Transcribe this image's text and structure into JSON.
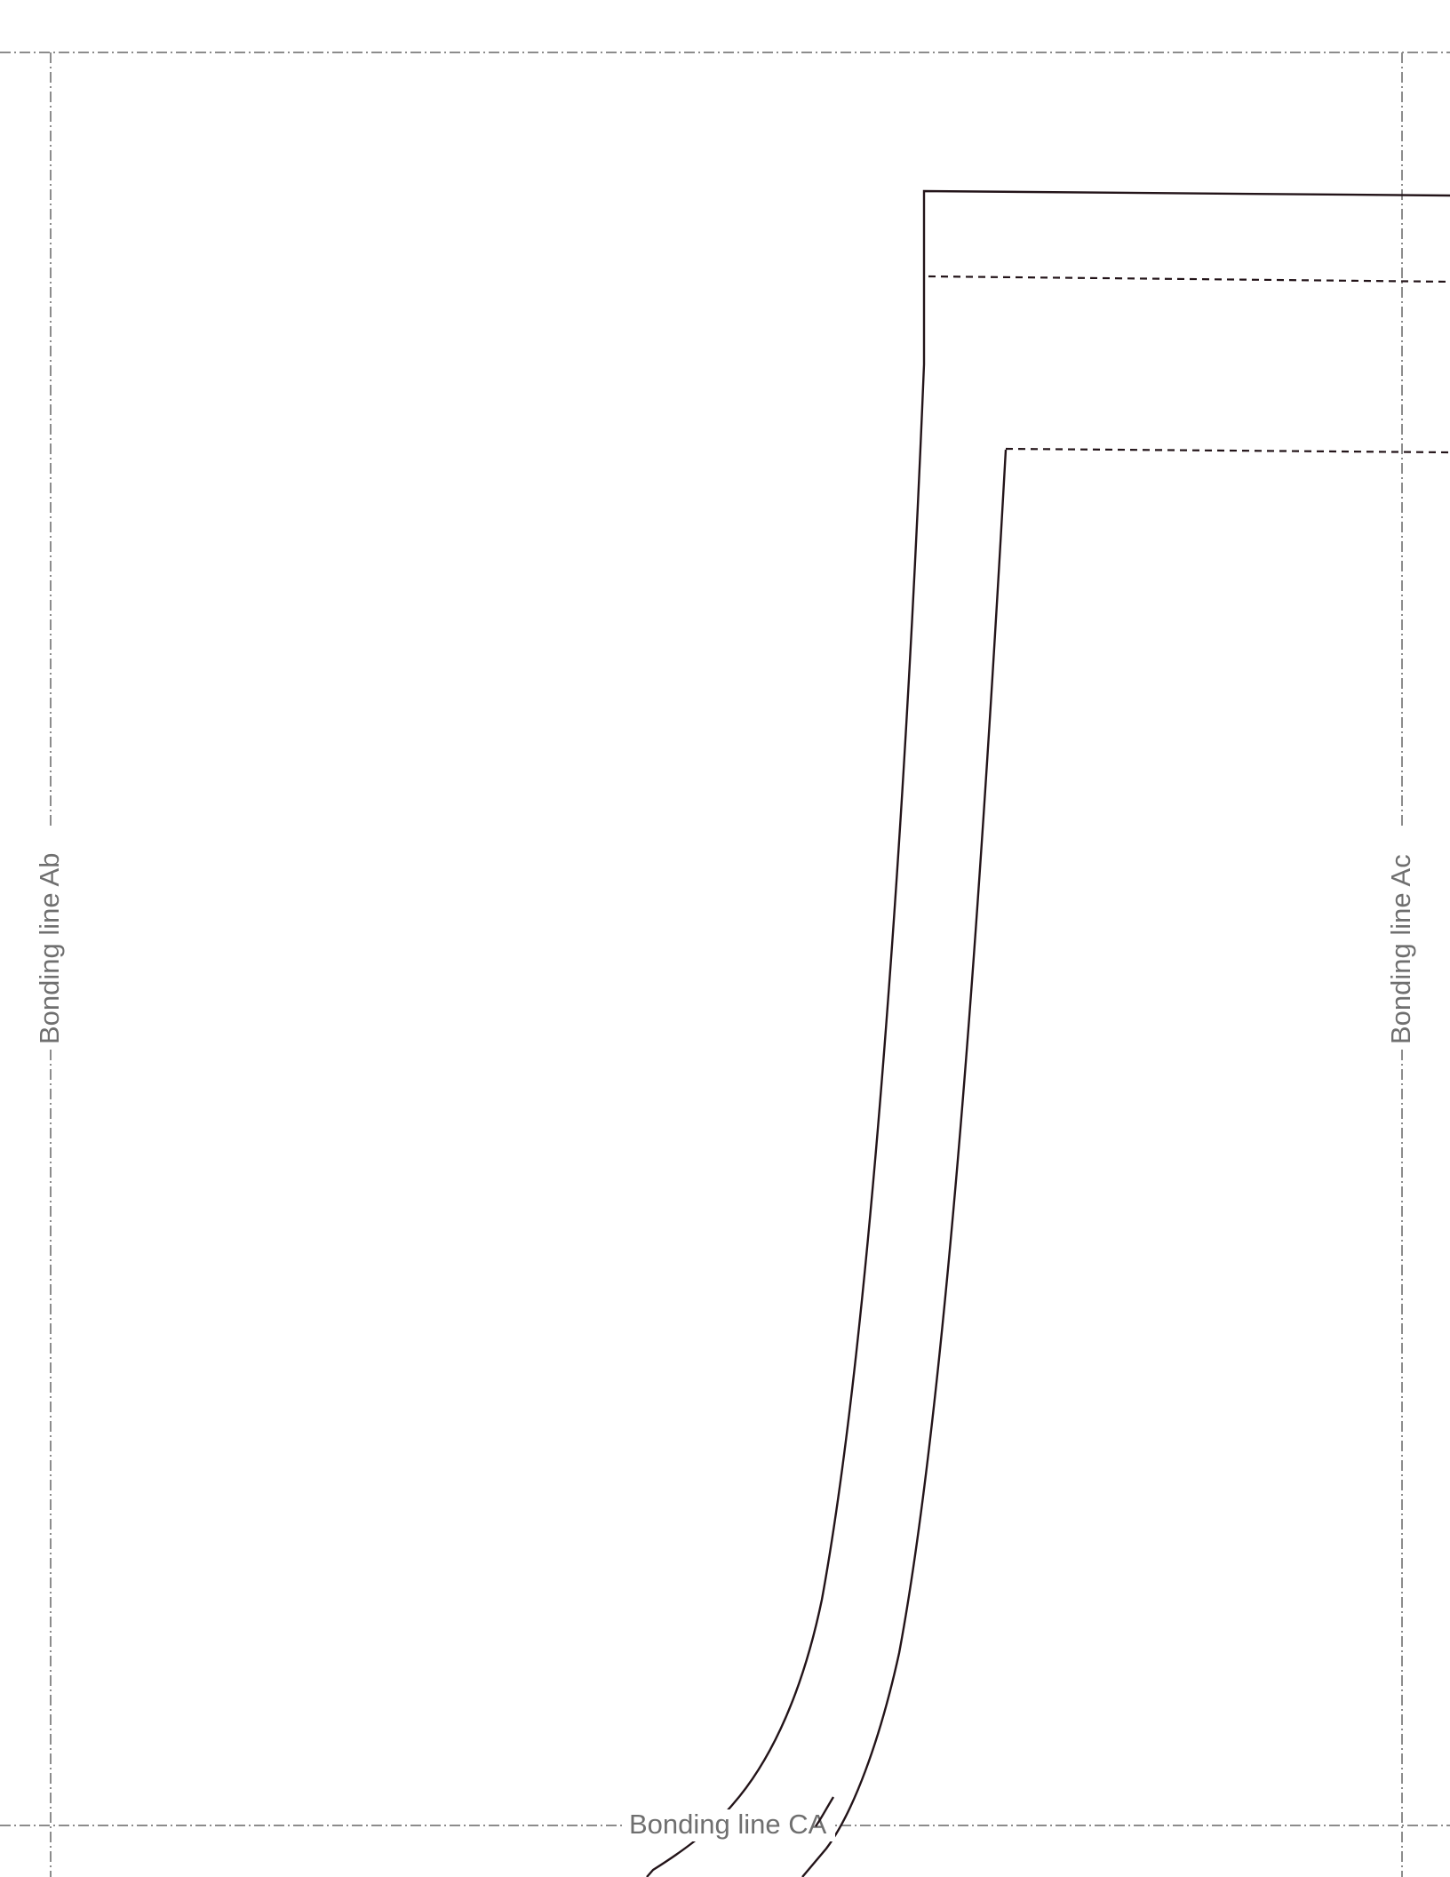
{
  "labels": {
    "left": "Bonding line Ab",
    "right": "Bonding line Ac",
    "bottom": "Bonding line CA"
  }
}
